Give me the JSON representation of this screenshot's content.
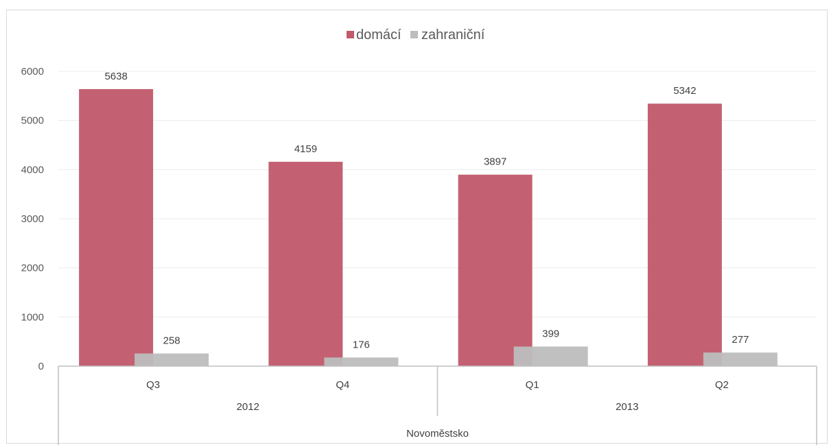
{
  "chart_data": {
    "type": "bar",
    "categories": [
      "Q3",
      "Q4",
      "Q1",
      "Q2"
    ],
    "groups": [
      {
        "label": "2012",
        "categories": [
          "Q3",
          "Q4"
        ]
      },
      {
        "label": "2013",
        "categories": [
          "Q1",
          "Q2"
        ]
      }
    ],
    "outer_label": "Novoměstsko",
    "series": [
      {
        "name": "domácí",
        "color": "#c0596a",
        "values": [
          5638,
          4159,
          3897,
          5342
        ]
      },
      {
        "name": "zahraniční",
        "color": "#bdbdbd",
        "values": [
          258,
          176,
          399,
          277
        ]
      }
    ],
    "yticks": [
      "0",
      "1000",
      "2000",
      "3000",
      "4000",
      "5000",
      "6000"
    ],
    "ylim": [
      0,
      6000
    ],
    "grid": true,
    "legend_position": "top-center",
    "data_labels": true
  }
}
